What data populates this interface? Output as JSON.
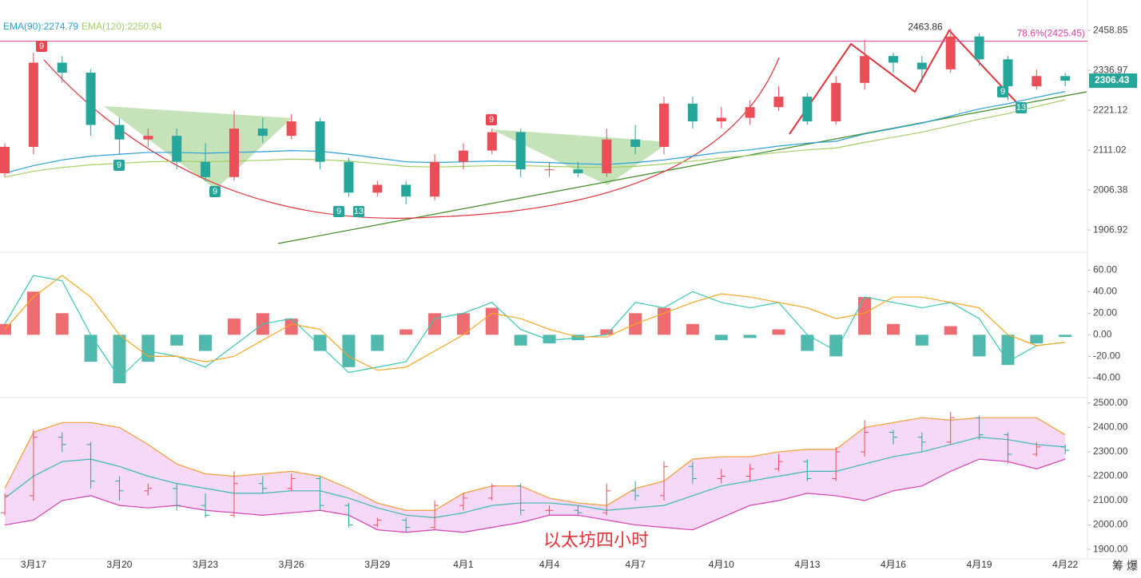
{
  "chart_data": [
    {
      "type": "candlestick",
      "log": true,
      "categories": [
        null,
        "3月17",
        null,
        null,
        "3月20",
        null,
        null,
        "3月23",
        null,
        null,
        "3月26",
        null,
        null,
        "3月29",
        null,
        null,
        "4月1",
        null,
        null,
        "4月4",
        null,
        null,
        "4月7",
        null,
        null,
        "4月10",
        null,
        null,
        "4月13",
        null,
        null,
        "4月16",
        null,
        null,
        "4月19",
        null,
        null,
        "4月22"
      ],
      "open": [
        2050,
        2120,
        2360,
        2330,
        2180,
        2140,
        2150,
        2080,
        2040,
        2170,
        2150,
        2190,
        2080,
        2000,
        2020,
        1990,
        2080,
        2110,
        2160,
        2060,
        2060,
        2050,
        2140,
        2120,
        2240,
        2190,
        2200,
        2230,
        2260,
        2190,
        2300,
        2380,
        2360,
        2340,
        2440,
        2370,
        2290,
        2320
      ],
      "high": [
        2130,
        2390,
        2380,
        2340,
        2200,
        2170,
        2170,
        2130,
        2220,
        2200,
        2210,
        2200,
        2090,
        2030,
        2030,
        2100,
        2130,
        2170,
        2170,
        2080,
        2080,
        2170,
        2180,
        2260,
        2260,
        2230,
        2250,
        2290,
        2270,
        2320,
        2430,
        2390,
        2380,
        2463.86,
        2450,
        2380,
        2340,
        2330
      ],
      "low": [
        2040,
        2100,
        2300,
        2150,
        2100,
        2120,
        2060,
        2030,
        2030,
        2130,
        2140,
        2060,
        1990,
        1990,
        1970,
        1980,
        2060,
        2100,
        2040,
        2040,
        2040,
        2040,
        2100,
        2100,
        2170,
        2170,
        2180,
        2220,
        2180,
        2180,
        2280,
        2330,
        2300,
        2330,
        2350,
        2250,
        2280,
        2290
      ],
      "close": [
        2120,
        2360,
        2330,
        2180,
        2140,
        2150,
        2080,
        2040,
        2170,
        2150,
        2190,
        2080,
        2000,
        2020,
        1990,
        2080,
        2110,
        2160,
        2060,
        2060,
        2050,
        2140,
        2120,
        2240,
        2190,
        2200,
        2230,
        2260,
        2190,
        2300,
        2380,
        2360,
        2340,
        2440,
        2370,
        2290,
        2320,
        2306.43
      ],
      "up_color": "#ea4f58",
      "down_color": "#26a69a",
      "series": [
        {
          "name": "EMA(90):2274.79",
          "color": "#2a9fd6",
          "values": [
            2050,
            2070,
            2085,
            2095,
            2100,
            2105,
            2105,
            2103,
            2105,
            2107,
            2110,
            2108,
            2100,
            2090,
            2080,
            2078,
            2080,
            2082,
            2080,
            2078,
            2075,
            2073,
            2078,
            2085,
            2095,
            2105,
            2112,
            2122,
            2130,
            2135,
            2155,
            2170,
            2185,
            2205,
            2225,
            2240,
            2258,
            2274.79
          ]
        },
        {
          "name": "EMA(120):2250.94",
          "color": "#a3cf62",
          "values": [
            2040,
            2055,
            2065,
            2072,
            2076,
            2080,
            2082,
            2080,
            2082,
            2084,
            2087,
            2086,
            2082,
            2075,
            2068,
            2066,
            2068,
            2070,
            2070,
            2068,
            2066,
            2065,
            2068,
            2074,
            2082,
            2090,
            2097,
            2105,
            2112,
            2117,
            2132,
            2146,
            2160,
            2178,
            2196,
            2212,
            2232,
            2250.94
          ]
        }
      ],
      "ylim": [
        1865,
        2556
      ],
      "yticks": [
        1906.92,
        2006.38,
        2111.02,
        2221.12,
        2336.97,
        2458.85
      ],
      "hline": {
        "value": 2425.45,
        "label": "78.6%(2425.45)",
        "color": "#d6409f"
      },
      "annotation": {
        "value": 2463.86,
        "label": "2463.86"
      },
      "td_markers": [
        "9",
        "9",
        "9",
        "9",
        "13",
        "9",
        "9",
        "13"
      ]
    },
    {
      "type": "macd",
      "histogram": [
        10,
        40,
        20,
        -25,
        -45,
        -25,
        -10,
        -15,
        15,
        20,
        15,
        -15,
        -30,
        -15,
        5,
        20,
        20,
        25,
        -10,
        -8,
        -5,
        5,
        20,
        25,
        10,
        -5,
        -3,
        5,
        -15,
        -20,
        35,
        10,
        -10,
        8,
        -20,
        -28,
        -8,
        -2
      ],
      "series": [
        {
          "color": "#3cc7b4",
          "values": [
            10,
            55,
            50,
            0,
            -40,
            -15,
            -20,
            -30,
            -10,
            10,
            15,
            -10,
            -35,
            -30,
            -25,
            15,
            20,
            30,
            5,
            -5,
            -3,
            0,
            30,
            25,
            40,
            30,
            25,
            30,
            0,
            -15,
            35,
            30,
            25,
            30,
            15,
            -25,
            -10,
            -7
          ]
        },
        {
          "color": "#f5a623",
          "values": [
            5,
            35,
            55,
            35,
            0,
            -20,
            -20,
            -25,
            -20,
            -5,
            10,
            5,
            -20,
            -33,
            -30,
            -15,
            0,
            20,
            15,
            5,
            -2,
            -2,
            10,
            20,
            30,
            38,
            35,
            30,
            25,
            15,
            20,
            35,
            35,
            30,
            25,
            0,
            -10,
            -7
          ]
        }
      ],
      "ylim": [
        -56,
        75
      ],
      "yticks": [
        {
          "value": -40,
          "label": "-40.00"
        },
        {
          "value": -20,
          "label": "-20.00"
        },
        {
          "value": 0,
          "label": "0.00"
        },
        {
          "value": 20,
          "label": "20.00"
        },
        {
          "value": 40,
          "label": "40.00"
        },
        {
          "value": 60,
          "label": "60.00"
        }
      ]
    },
    {
      "type": "bollinger",
      "upper": [
        2150,
        2380,
        2420,
        2420,
        2400,
        2330,
        2250,
        2210,
        2200,
        2210,
        2220,
        2200,
        2150,
        2090,
        2060,
        2060,
        2130,
        2160,
        2160,
        2110,
        2090,
        2080,
        2150,
        2180,
        2270,
        2280,
        2280,
        2300,
        2310,
        2310,
        2400,
        2420,
        2440,
        2430,
        2440,
        2440,
        2440,
        2370
      ],
      "middle": [
        2110,
        2200,
        2260,
        2270,
        2240,
        2200,
        2170,
        2150,
        2130,
        2130,
        2140,
        2140,
        2110,
        2070,
        2040,
        2030,
        2050,
        2080,
        2090,
        2090,
        2080,
        2060,
        2070,
        2080,
        2120,
        2160,
        2180,
        2200,
        2220,
        2220,
        2250,
        2280,
        2300,
        2330,
        2360,
        2350,
        2330,
        2320
      ],
      "lower": [
        2000,
        2020,
        2100,
        2120,
        2080,
        2070,
        2080,
        2060,
        2050,
        2040,
        2050,
        2060,
        2040,
        1980,
        1970,
        1980,
        1970,
        1990,
        2010,
        2040,
        2040,
        2020,
        2000,
        1990,
        1980,
        2030,
        2080,
        2100,
        2130,
        2120,
        2100,
        2140,
        2160,
        2220,
        2270,
        2260,
        2230,
        2270
      ],
      "colors": {
        "upper": "#f39c33",
        "middle": "#3bb8b0",
        "lower": "#d63fb0",
        "fill": "#f6d9f6"
      },
      "ylim": [
        1861,
        2516
      ],
      "yticks": [
        {
          "value": 1900,
          "label": "1900.00"
        },
        {
          "value": 2000,
          "label": "2000.00"
        },
        {
          "value": 2100,
          "label": "2100.00"
        },
        {
          "value": 2200,
          "label": "2200.00"
        },
        {
          "value": 2300,
          "label": "2300.00"
        },
        {
          "value": 2400,
          "label": "2400.00"
        },
        {
          "value": 2500,
          "label": "2500.00"
        }
      ],
      "annotation": "以太坊四小时"
    }
  ],
  "side_buttons": [
    "筹",
    "爆"
  ]
}
